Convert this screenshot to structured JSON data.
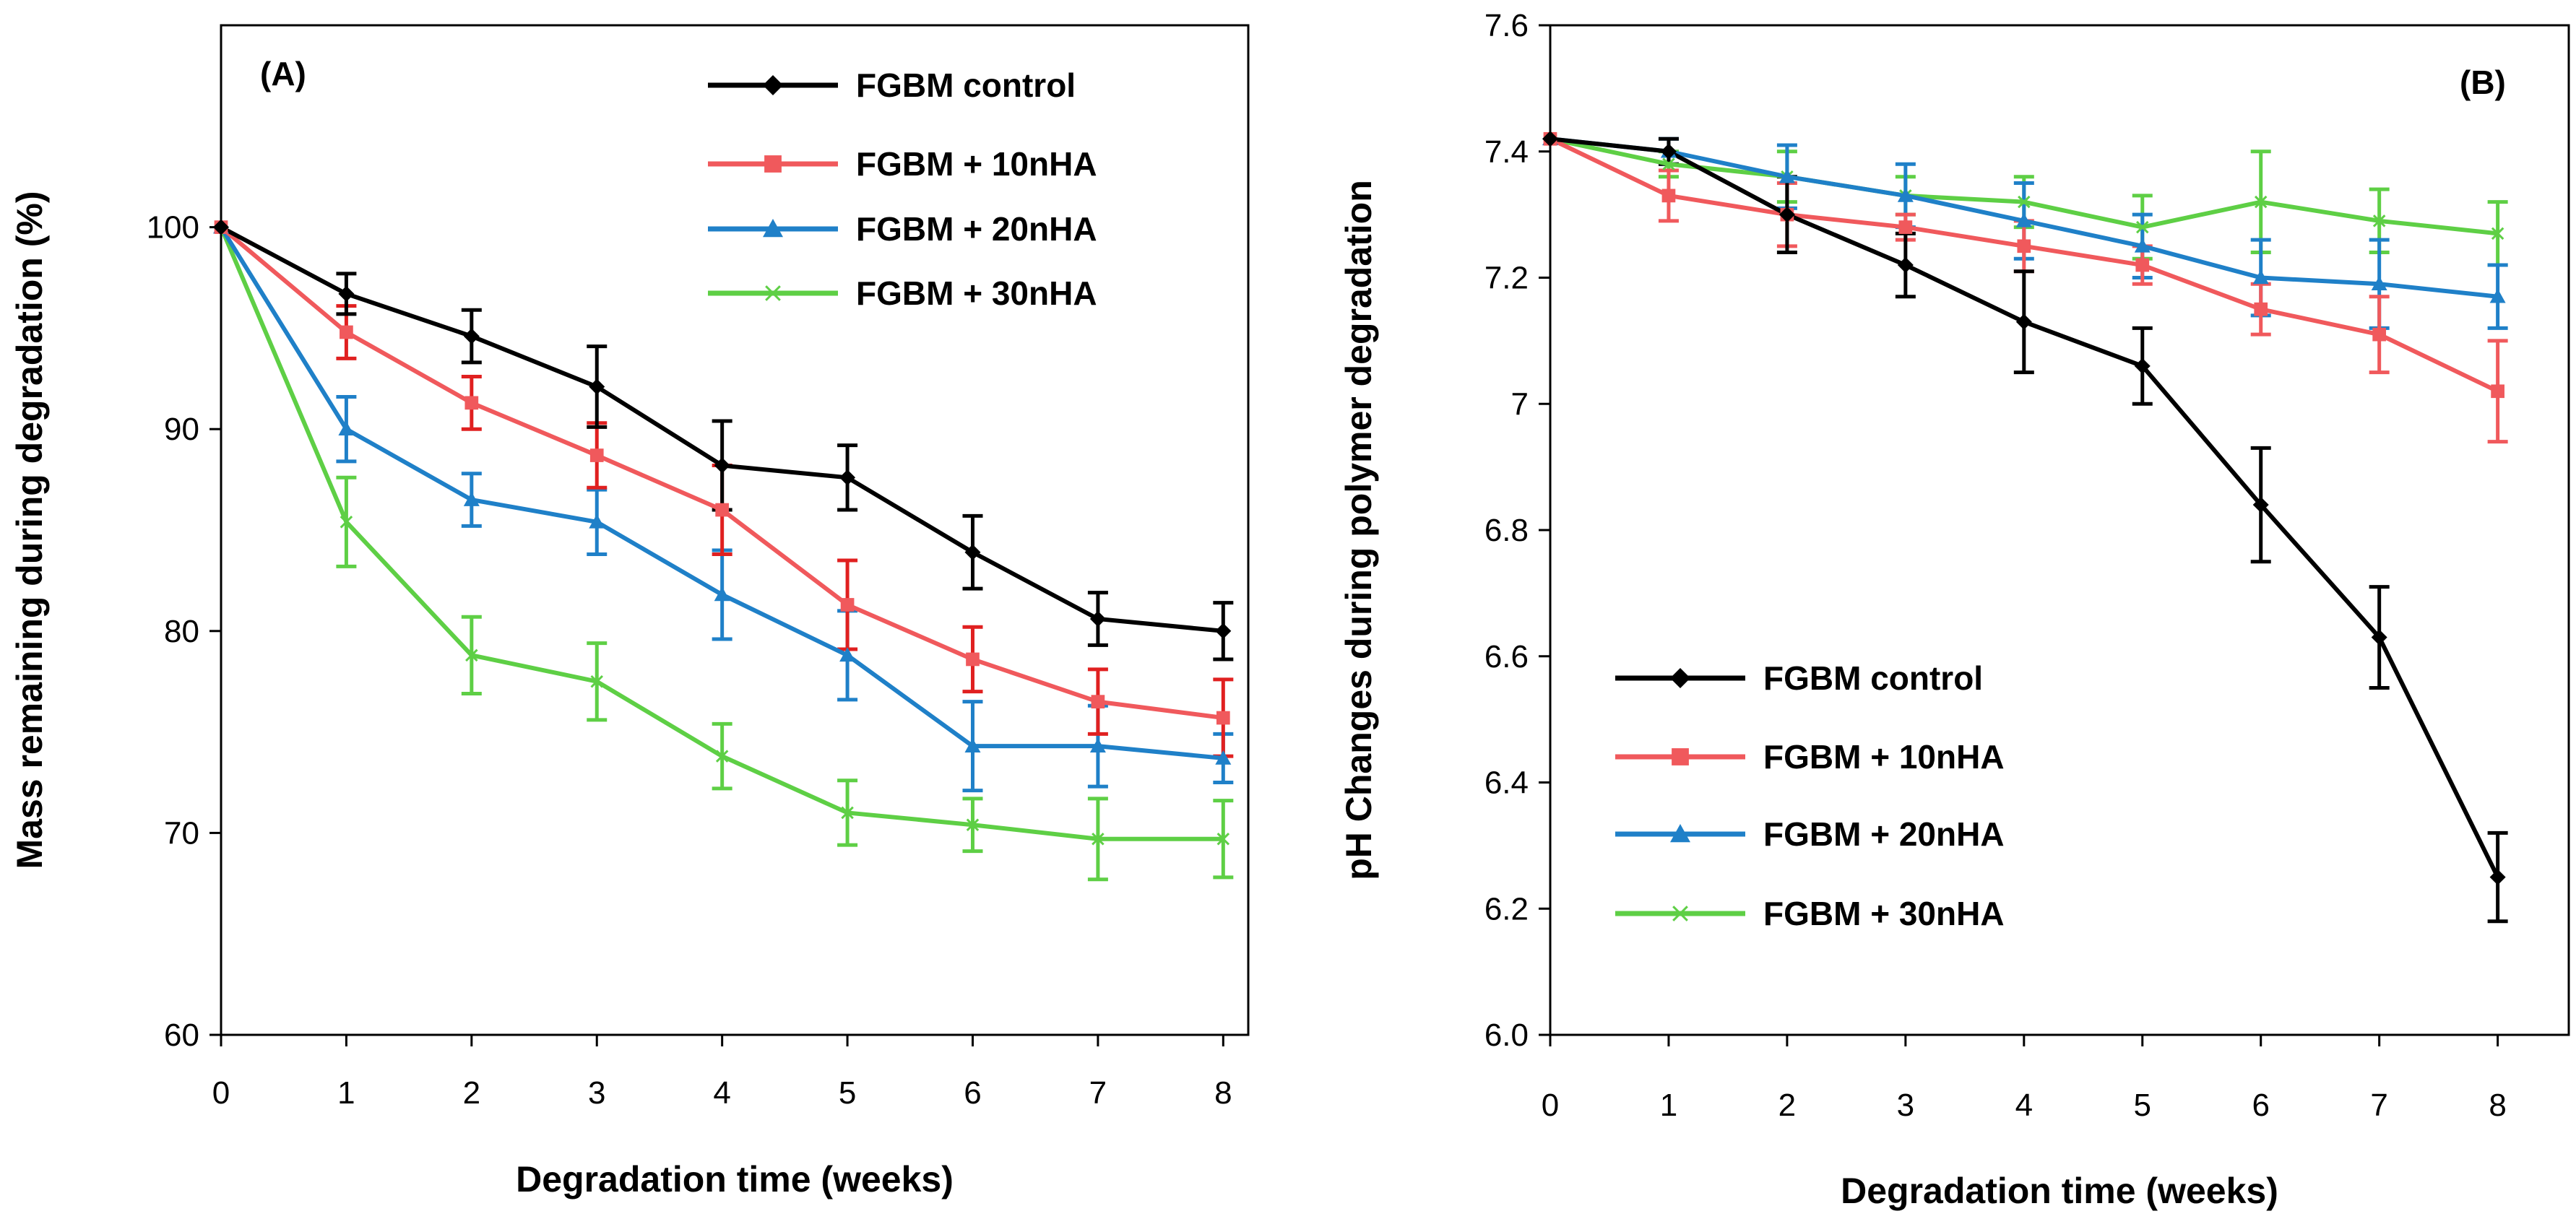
{
  "chart_data": [
    {
      "type": "line",
      "panel_label": "(A)",
      "xlabel": "Degradation  time (weeks)",
      "ylabel": "Mass  remaining during degradation (%)",
      "xlim": [
        0,
        8.2
      ],
      "ylim": [
        60,
        110
      ],
      "xticks": [
        0,
        1,
        2,
        3,
        4,
        5,
        6,
        7,
        8
      ],
      "yticks": [
        60,
        70,
        80,
        90,
        100
      ],
      "ytick_labels": [
        "60",
        "70",
        "80",
        "90",
        "100"
      ],
      "legend_position": "top-right",
      "x": [
        0,
        1,
        2,
        3,
        4,
        5,
        6,
        7,
        8
      ],
      "series": [
        {
          "name": "FGBM control",
          "color": "#000000",
          "marker": "diamond",
          "error_color": "#000000",
          "values": [
            100,
            96.7,
            94.6,
            92.1,
            88.2,
            87.6,
            83.9,
            80.6,
            80.0
          ],
          "errors": [
            0,
            1.0,
            1.3,
            2.0,
            2.2,
            1.6,
            1.8,
            1.3,
            1.4
          ]
        },
        {
          "name": "FGBM + 10nHA",
          "color": "#f0595c",
          "marker": "square",
          "error_color": "#e02020",
          "values": [
            100,
            94.8,
            91.3,
            88.7,
            86.0,
            81.3,
            78.6,
            76.5,
            75.7
          ],
          "errors": [
            0,
            1.3,
            1.3,
            1.6,
            2.2,
            2.2,
            1.6,
            1.6,
            1.9
          ]
        },
        {
          "name": "FGBM + 20nHA",
          "color": "#1f80c8",
          "marker": "triangle",
          "error_color": "#1f80c8",
          "values": [
            100,
            90.0,
            86.5,
            85.4,
            81.8,
            78.8,
            74.3,
            74.3,
            73.7
          ],
          "errors": [
            0,
            1.6,
            1.3,
            1.6,
            2.2,
            2.2,
            2.2,
            2.0,
            1.2
          ]
        },
        {
          "name": "FGBM + 30nHA",
          "color": "#5ecf45",
          "marker": "x",
          "error_color": "#5ecf45",
          "values": [
            100,
            85.4,
            78.8,
            77.5,
            73.8,
            71.0,
            70.4,
            69.7,
            69.7
          ],
          "errors": [
            0,
            2.2,
            1.9,
            1.9,
            1.6,
            1.6,
            1.3,
            2.0,
            1.9
          ]
        }
      ]
    },
    {
      "type": "line",
      "panel_label": "(B)",
      "xlabel": "Degradation  time (weeks)",
      "ylabel": "pH Changes during polymer degradation",
      "xlim": [
        0,
        8.6
      ],
      "ylim": [
        6.0,
        7.6
      ],
      "xticks": [
        0,
        1,
        2,
        3,
        4,
        5,
        6,
        7,
        8
      ],
      "yticks": [
        6.0,
        6.2,
        6.4,
        6.6,
        6.8,
        7.0,
        7.2,
        7.4,
        7.6
      ],
      "ytick_labels": [
        "6.0",
        "6.2",
        "6.4",
        "6.6",
        "6.8",
        "7",
        "7.2",
        "7.4",
        "7.6"
      ],
      "legend_position": "bottom-left",
      "x": [
        0,
        1,
        2,
        3,
        4,
        5,
        6,
        7,
        8
      ],
      "series": [
        {
          "name": "FGBM control",
          "color": "#000000",
          "marker": "diamond",
          "error_color": "#000000",
          "values": [
            7.42,
            7.4,
            7.3,
            7.22,
            7.13,
            7.06,
            6.84,
            6.63,
            6.25
          ],
          "errors": [
            0,
            0.02,
            0.06,
            0.05,
            0.08,
            0.06,
            0.09,
            0.08,
            0.07
          ]
        },
        {
          "name": "FGBM + 10nHA",
          "color": "#f0595c",
          "marker": "square",
          "error_color": "#f0595c",
          "values": [
            7.42,
            7.33,
            7.3,
            7.28,
            7.25,
            7.22,
            7.15,
            7.11,
            7.02
          ],
          "errors": [
            0,
            0.04,
            0.05,
            0.02,
            0.04,
            0.03,
            0.04,
            0.06,
            0.08
          ]
        },
        {
          "name": "FGBM + 20nHA",
          "color": "#1f80c8",
          "marker": "triangle",
          "error_color": "#1f80c8",
          "values": [
            7.42,
            7.4,
            7.36,
            7.33,
            7.29,
            7.25,
            7.2,
            7.19,
            7.17
          ],
          "errors": [
            0,
            0.02,
            0.05,
            0.05,
            0.06,
            0.05,
            0.06,
            0.07,
            0.05
          ]
        },
        {
          "name": "FGBM + 30nHA",
          "color": "#5ecf45",
          "marker": "x",
          "error_color": "#5ecf45",
          "values": [
            7.42,
            7.38,
            7.36,
            7.33,
            7.32,
            7.28,
            7.32,
            7.29,
            7.27
          ],
          "errors": [
            0,
            0.02,
            0.04,
            0.03,
            0.04,
            0.05,
            0.08,
            0.05,
            0.05
          ]
        }
      ]
    }
  ]
}
